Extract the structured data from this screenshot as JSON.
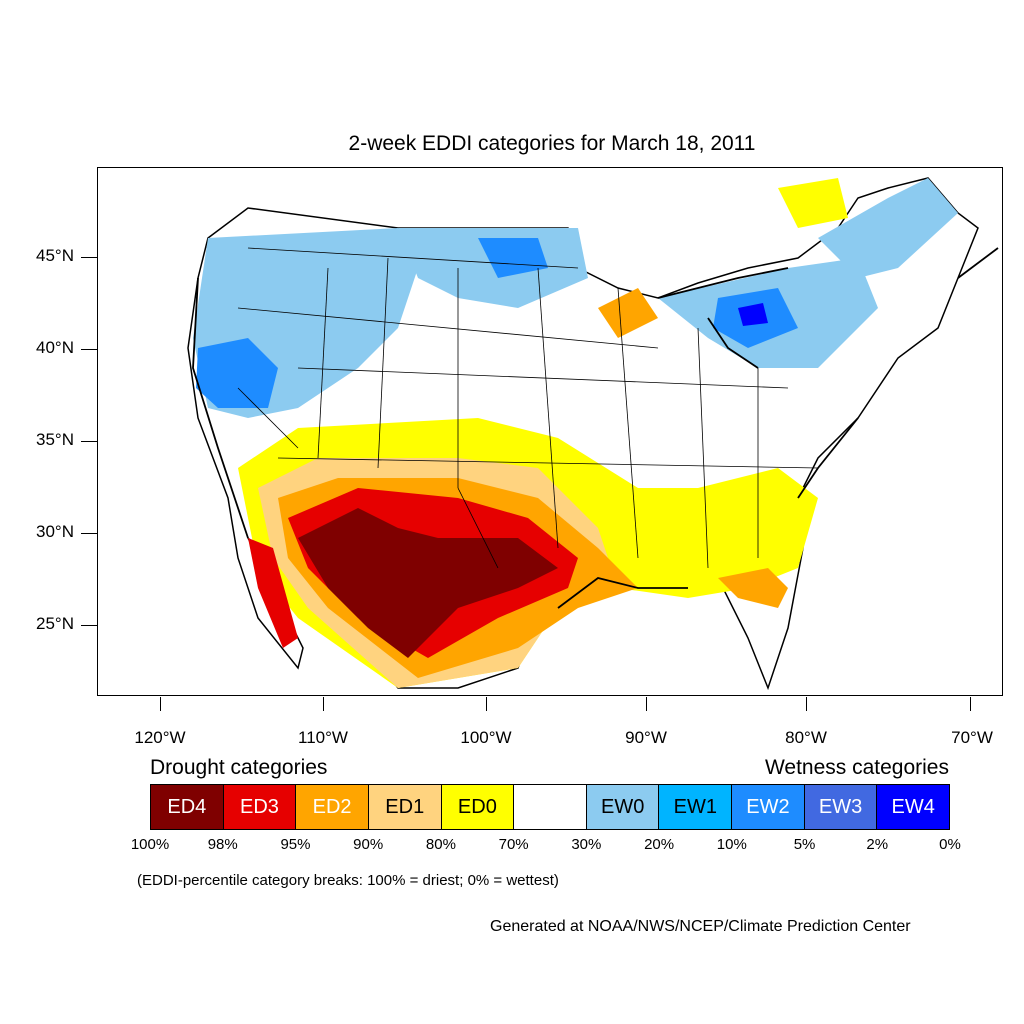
{
  "title": "2-week EDDI categories for March 18, 2011",
  "lat_labels": [
    "45°N",
    "40°N",
    "35°N",
    "30°N",
    "25°N"
  ],
  "lon_labels": [
    "120°W",
    "110°W",
    "100°W",
    "90°W",
    "80°W",
    "70°W"
  ],
  "legend": {
    "drought_title": "Drought categories",
    "wetness_title": "Wetness categories",
    "categories": [
      {
        "label": "ED4",
        "color": "#7f0000",
        "text_color": "#ffffff"
      },
      {
        "label": "ED3",
        "color": "#e60000",
        "text_color": "#ffffff"
      },
      {
        "label": "ED2",
        "color": "#ffa500",
        "text_color": "#ffffff"
      },
      {
        "label": "ED1",
        "color": "#ffd37f",
        "text_color": "#000000"
      },
      {
        "label": "ED0",
        "color": "#ffff00",
        "text_color": "#000000"
      },
      {
        "label": "",
        "color": "#ffffff",
        "text_color": "#000000"
      },
      {
        "label": "EW0",
        "color": "#8ccbf0",
        "text_color": "#000000"
      },
      {
        "label": "EW1",
        "color": "#00b4ff",
        "text_color": "#000000"
      },
      {
        "label": "EW2",
        "color": "#1e8cff",
        "text_color": "#ffffff"
      },
      {
        "label": "EW3",
        "color": "#4169e1",
        "text_color": "#ffffff"
      },
      {
        "label": "EW4",
        "color": "#0000ff",
        "text_color": "#ffffff"
      }
    ],
    "breaks": [
      "100%",
      "98%",
      "95%",
      "90%",
      "80%",
      "70%",
      "30%",
      "20%",
      "10%",
      "5%",
      "2%",
      "0%"
    ]
  },
  "note": "(EDDI-percentile category breaks: 100% = driest; 0% = wettest)",
  "credit": "Generated at NOAA/NWS/NCEP/Climate Prediction Center"
}
